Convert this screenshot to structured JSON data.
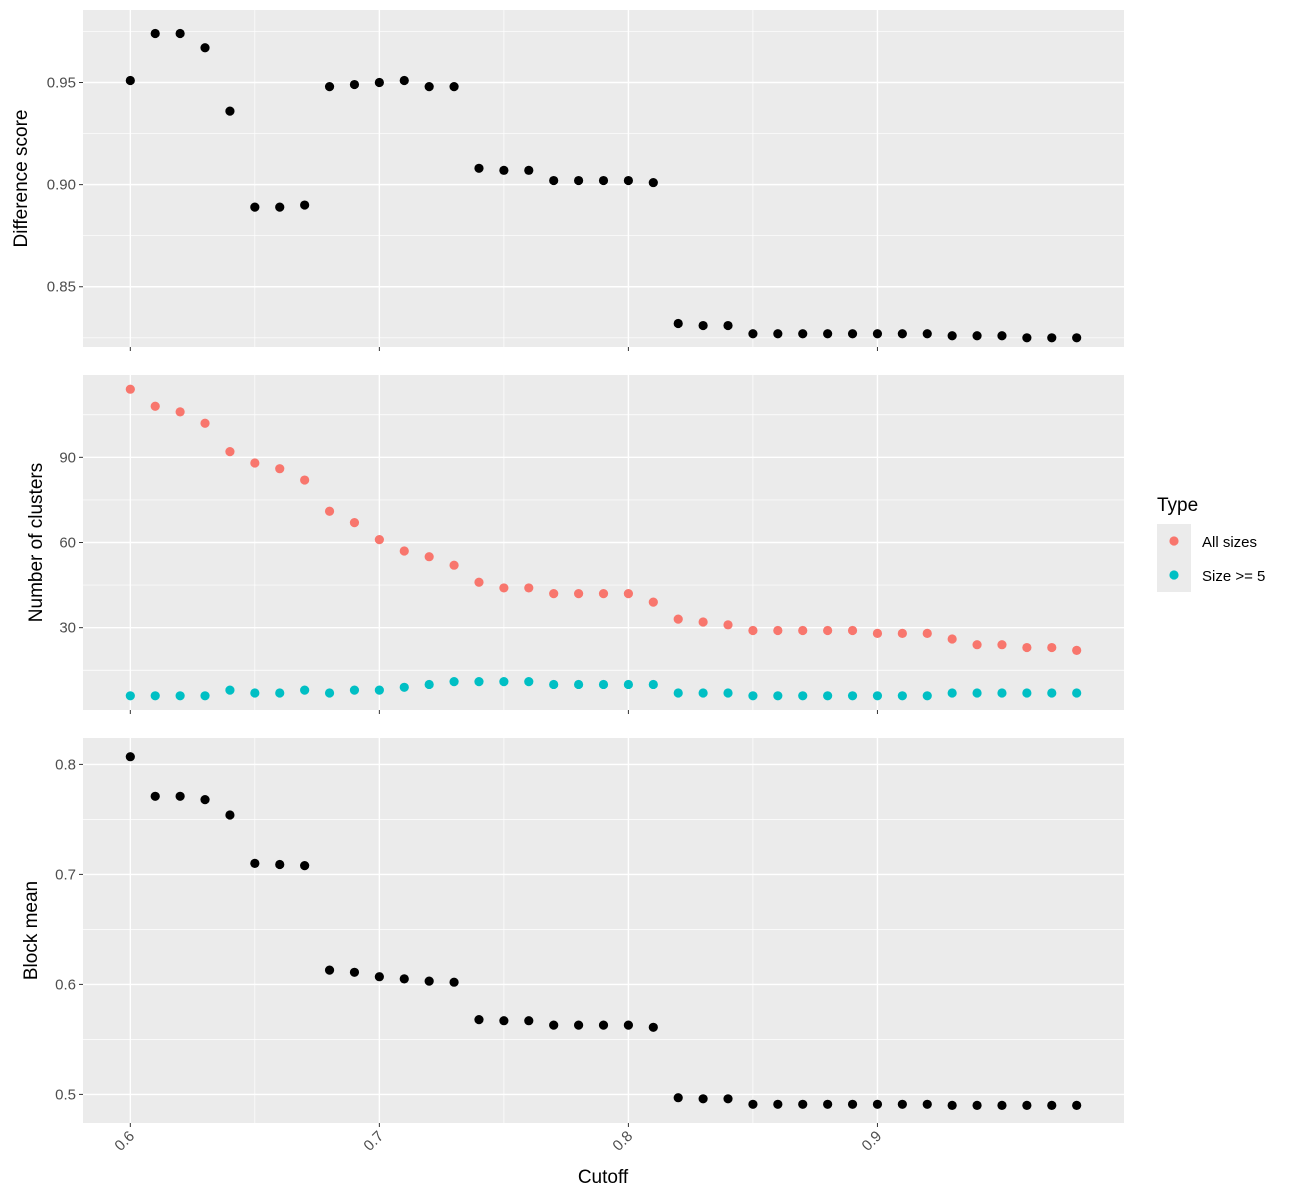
{
  "chart_data": {
    "type": "scatter",
    "xlabel": "Cutoff",
    "x_ticks": [
      0.6,
      0.7,
      0.8,
      0.9
    ],
    "x_tick_labels": [
      "0.6",
      "0.7",
      "0.8",
      "0.9"
    ],
    "xlim": [
      0.581,
      0.999
    ],
    "x": [
      0.6,
      0.61,
      0.62,
      0.63,
      0.64,
      0.65,
      0.66,
      0.67,
      0.68,
      0.69,
      0.7,
      0.71,
      0.72,
      0.73,
      0.74,
      0.75,
      0.76,
      0.77,
      0.78,
      0.79,
      0.8,
      0.81,
      0.82,
      0.83,
      0.84,
      0.85,
      0.86,
      0.87,
      0.88,
      0.89,
      0.9,
      0.91,
      0.92,
      0.93,
      0.94,
      0.95,
      0.96,
      0.97,
      0.98
    ],
    "panels": [
      {
        "id": "difference-score",
        "ylabel": "Difference score",
        "ylim": [
          0.8205,
          0.9855
        ],
        "y_ticks": [
          0.85,
          0.9,
          0.95
        ],
        "y_tick_labels": [
          "0.85",
          "0.90",
          "0.95"
        ],
        "series": [
          {
            "color": "#000000",
            "values": [
              0.951,
              0.974,
              0.974,
              0.967,
              0.936,
              0.889,
              0.889,
              0.89,
              0.948,
              0.949,
              0.95,
              0.951,
              0.948,
              0.948,
              0.908,
              0.907,
              0.907,
              0.902,
              0.902,
              0.902,
              0.902,
              0.901,
              0.832,
              0.831,
              0.831,
              0.827,
              0.827,
              0.827,
              0.827,
              0.827,
              0.827,
              0.827,
              0.827,
              0.826,
              0.826,
              0.826,
              0.825,
              0.825,
              0.825
            ]
          }
        ]
      },
      {
        "id": "number-of-clusters",
        "ylabel": "Number of clusters",
        "ylim": [
          1.0,
          119.0
        ],
        "y_ticks": [
          30,
          60,
          90
        ],
        "y_tick_labels": [
          "30",
          "60",
          "90"
        ],
        "series": [
          {
            "name": "All sizes",
            "color": "#F8766D",
            "values": [
              114,
              108,
              106,
              102,
              92,
              88,
              86,
              82,
              71,
              67,
              61,
              57,
              55,
              52,
              46,
              44,
              44,
              42,
              42,
              42,
              42,
              39,
              33,
              32,
              31,
              29,
              29,
              29,
              29,
              29,
              28,
              28,
              28,
              26,
              24,
              24,
              23,
              23,
              22
            ]
          },
          {
            "name": "Size >= 5",
            "color": "#00BFC4",
            "values": [
              6,
              6,
              6,
              6,
              8,
              7,
              7,
              8,
              7,
              8,
              8,
              9,
              10,
              11,
              11,
              11,
              11,
              10,
              10,
              10,
              10,
              10,
              7,
              7,
              7,
              6,
              6,
              6,
              6,
              6,
              6,
              6,
              6,
              7,
              7,
              7,
              7,
              7,
              7
            ]
          }
        ]
      },
      {
        "id": "block-mean",
        "ylabel": "Block mean",
        "ylim": [
          0.474,
          0.824
        ],
        "y_ticks": [
          0.5,
          0.6,
          0.7,
          0.8
        ],
        "y_tick_labels": [
          "0.5",
          "0.6",
          "0.7",
          "0.8"
        ],
        "series": [
          {
            "color": "#000000",
            "values": [
              0.807,
              0.771,
              0.771,
              0.768,
              0.754,
              0.71,
              0.709,
              0.708,
              0.613,
              0.611,
              0.607,
              0.605,
              0.603,
              0.602,
              0.568,
              0.567,
              0.567,
              0.563,
              0.563,
              0.563,
              0.563,
              0.561,
              0.497,
              0.496,
              0.496,
              0.491,
              0.491,
              0.491,
              0.491,
              0.491,
              0.491,
              0.491,
              0.491,
              0.49,
              0.49,
              0.49,
              0.49,
              0.49,
              0.49
            ]
          }
        ]
      }
    ],
    "legend": {
      "title": "Type",
      "placement": "right",
      "entries": [
        {
          "label": "All sizes",
          "color": "#F8766D"
        },
        {
          "label": "Size >= 5",
          "color": "#00BFC4"
        }
      ]
    },
    "grid": true,
    "panel_background": "#EBEBEB",
    "gridline_color": "#FFFFFF"
  }
}
